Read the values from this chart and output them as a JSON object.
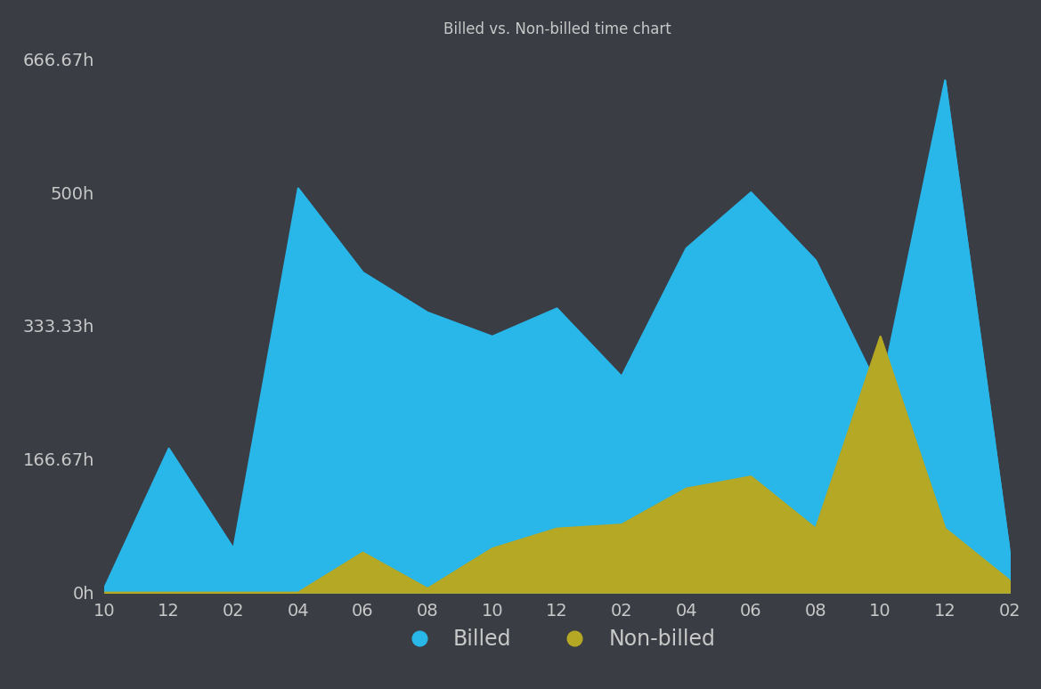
{
  "title": "Billed vs. Non-billed time chart",
  "background_color": "#3a3d44",
  "plot_bg_color": "#3a3d44",
  "billed_color": "#29b6e8",
  "nonbilled_color": "#b5a824",
  "yticks": [
    0,
    166.67,
    333.33,
    500,
    666.67
  ],
  "ytick_labels": [
    "0h",
    "166.67h",
    "333.33h",
    "500h",
    "666.67h"
  ],
  "ylim": [
    0,
    680
  ],
  "xtick_labels": [
    "10",
    "12",
    "02",
    "04",
    "06",
    "08",
    "10",
    "12",
    "02",
    "04",
    "06",
    "08",
    "10",
    "12",
    "02"
  ],
  "x_values": [
    0,
    1,
    2,
    3,
    4,
    5,
    6,
    7,
    8,
    9,
    10,
    11,
    12,
    13,
    14
  ],
  "billed": [
    5,
    180,
    55,
    505,
    400,
    350,
    320,
    355,
    270,
    430,
    500,
    415,
    250,
    640,
    50
  ],
  "nonbilled": [
    0,
    0,
    0,
    0,
    50,
    5,
    55,
    80,
    85,
    130,
    145,
    80,
    320,
    80,
    15
  ],
  "legend_billed": "Billed",
  "legend_nonbilled": "Non-billed",
  "title_color": "#c8c8c8",
  "tick_color": "#c8c8c8",
  "title_fontsize": 12,
  "tick_fontsize": 14,
  "legend_fontsize": 17
}
